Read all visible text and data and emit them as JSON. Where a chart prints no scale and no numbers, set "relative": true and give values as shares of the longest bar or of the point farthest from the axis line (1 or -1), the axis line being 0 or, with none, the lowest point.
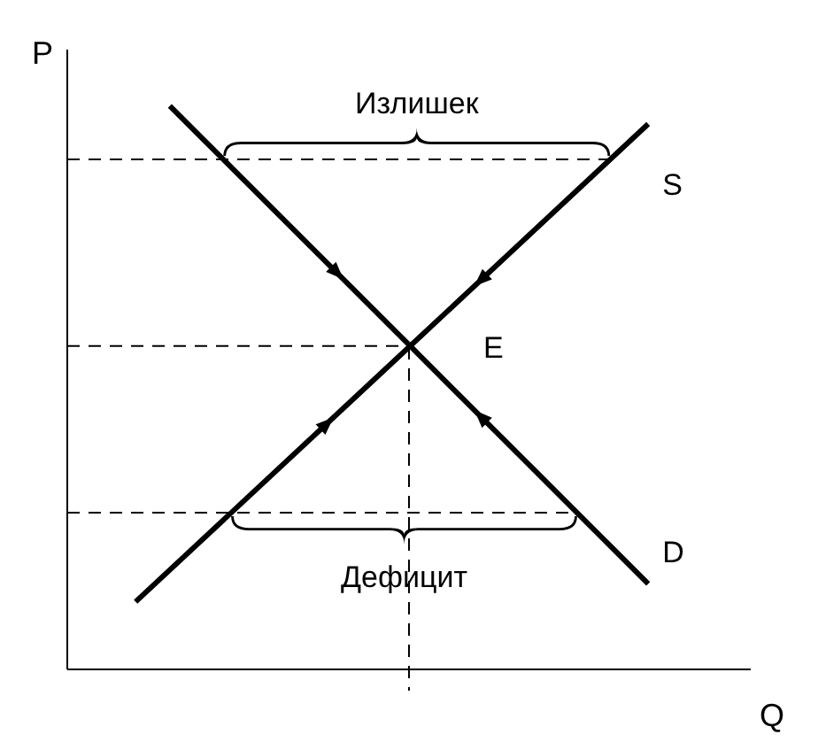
{
  "chart_data": {
    "type": "line",
    "relative": true,
    "xlabel": "Q",
    "ylabel": "P",
    "categories": [
      null,
      null,
      null,
      null,
      null,
      null,
      null,
      null,
      null,
      null,
      null,
      null,
      null,
      null,
      null,
      null,
      null,
      null,
      null,
      null,
      null
    ],
    "series": [
      {
        "name": "S",
        "color": "#000000",
        "values": [
          null,
          null,
          0.12,
          null,
          null,
          null,
          null,
          null,
          null,
          null,
          0.572,
          null,
          null,
          null,
          null,
          null,
          null,
          0.968,
          null,
          null,
          null
        ]
      },
      {
        "name": "D",
        "color": "#000000",
        "values": [
          null,
          null,
          null,
          1,
          null,
          null,
          null,
          null,
          null,
          null,
          0.576,
          null,
          null,
          null,
          null,
          null,
          null,
          0.152,
          null,
          null,
          null
        ]
      }
    ],
    "ref_lines": [
      {
        "axis": "y",
        "value": 0.905,
        "line_style": "dashed"
      },
      {
        "axis": "y",
        "value": 0.574,
        "line_style": "dashed"
      },
      {
        "axis": "y",
        "value": 0.278,
        "line_style": "dashed"
      }
    ],
    "annotations": [
      "Излишек",
      "Дефицит",
      "E"
    ],
    "marker": "none",
    "line_style": "solid",
    "grid": false,
    "legend": false
  }
}
